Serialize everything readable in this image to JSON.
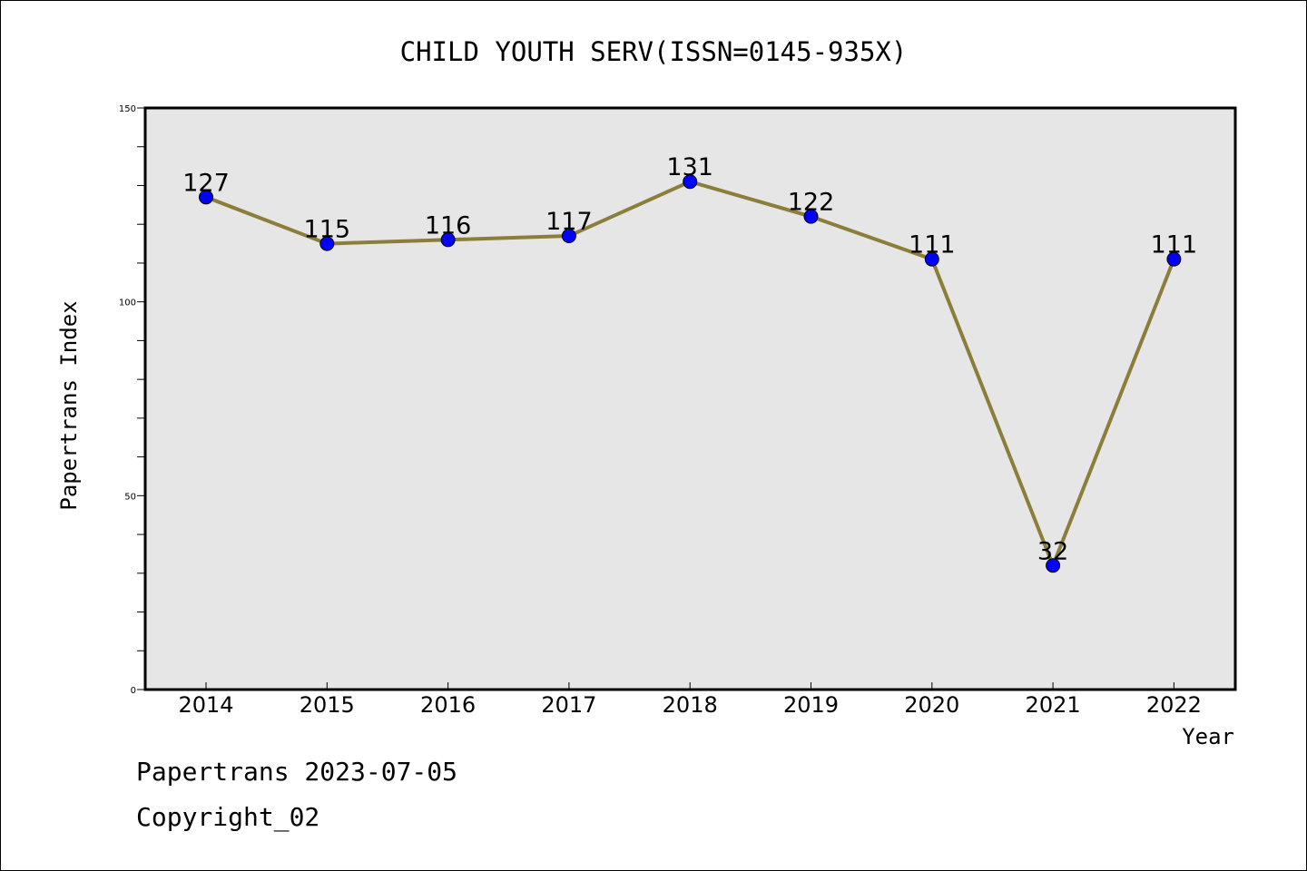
{
  "chart_data": {
    "type": "line",
    "title": "CHILD YOUTH SERV(ISSN=0145-935X)",
    "xlabel": "Year",
    "ylabel": "Papertrans Index",
    "categories": [
      "2014",
      "2015",
      "2016",
      "2017",
      "2018",
      "2019",
      "2020",
      "2021",
      "2022"
    ],
    "series": [
      {
        "values": [
          127,
          115,
          116,
          117,
          131,
          122,
          111,
          32,
          111
        ]
      }
    ],
    "data_labels": [
      "127",
      "115",
      "116",
      "117",
      "131",
      "122",
      "111",
      "32",
      "111"
    ],
    "y_ticks": [
      "0",
      "50",
      "100",
      "150"
    ],
    "ylim": [
      0,
      150
    ],
    "grid": false,
    "colors": {
      "line": "#8b7d3a",
      "marker": "#0000ff",
      "plot_background": "#e6e6e6"
    }
  },
  "footer": {
    "line1": "Papertrans 2023-07-05",
    "line2": "Copyright_02"
  }
}
